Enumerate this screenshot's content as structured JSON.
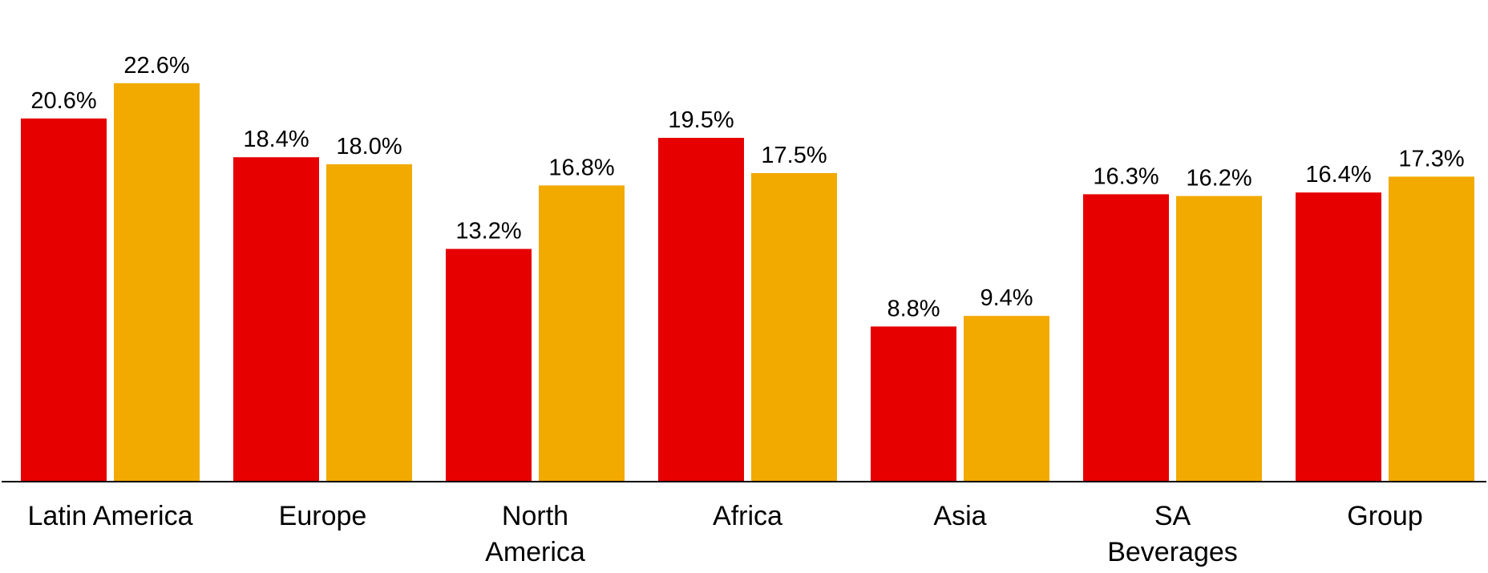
{
  "chart_data": {
    "type": "bar",
    "categories": [
      [
        "Latin America"
      ],
      [
        "Europe"
      ],
      [
        "North",
        "America"
      ],
      [
        "Africa"
      ],
      [
        "Asia"
      ],
      [
        "SA",
        "Beverages"
      ],
      [
        "Group"
      ]
    ],
    "series": [
      {
        "color": "#e60000",
        "values": [
          20.6,
          18.4,
          13.2,
          19.5,
          8.8,
          16.3,
          16.4
        ],
        "labels": [
          "20.6%",
          "18.4%",
          "13.2%",
          "19.5%",
          "8.8%",
          "16.3%",
          "16.4%"
        ]
      },
      {
        "color": "#f2a900",
        "values": [
          22.6,
          18.0,
          16.8,
          17.5,
          9.4,
          16.2,
          17.3
        ],
        "labels": [
          "22.6%",
          "18.0%",
          "16.8%",
          "17.5%",
          "9.4%",
          "16.2%",
          "17.3%"
        ]
      }
    ],
    "title": "",
    "xlabel": "",
    "ylabel": "",
    "ylim": [
      0,
      25
    ],
    "grid": false,
    "legend": "none",
    "axis_color": "#000000"
  }
}
